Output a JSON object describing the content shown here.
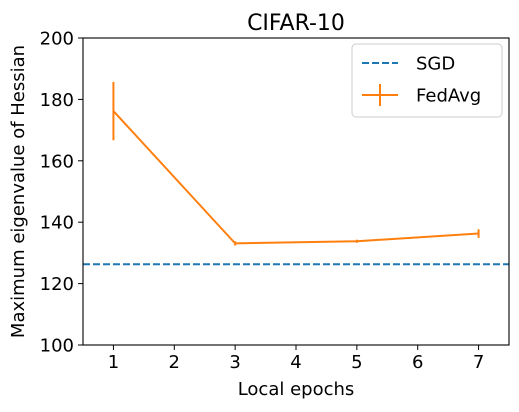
{
  "chart_data": {
    "type": "line",
    "title": "CIFAR-10",
    "xlabel": "Local epochs",
    "ylabel": "Maximum eigenvalue of Hessian",
    "xlim": [
      0.5,
      7.5
    ],
    "ylim": [
      100,
      200
    ],
    "xticks": [
      1,
      2,
      3,
      4,
      5,
      6,
      7
    ],
    "xtick_labels": [
      "1",
      "2",
      "3",
      "4",
      "5",
      "6",
      "7"
    ],
    "yticks": [
      100,
      120,
      140,
      160,
      180,
      200
    ],
    "ytick_labels": [
      "100",
      "120",
      "140",
      "160",
      "180",
      "200"
    ],
    "grid": false,
    "legend_position": "top-right",
    "series": [
      {
        "name": "SGD",
        "kind": "hline",
        "style": "dashed",
        "color": "#1f77b4",
        "y": 126.3
      },
      {
        "name": "FedAvg",
        "kind": "errorbar",
        "style": "solid",
        "color": "#ff7f0e",
        "x": [
          1,
          3,
          5,
          7
        ],
        "y": [
          176.2,
          133.1,
          133.8,
          136.3
        ],
        "yerr": [
          9.5,
          0.7,
          0.5,
          1.4
        ]
      }
    ]
  }
}
